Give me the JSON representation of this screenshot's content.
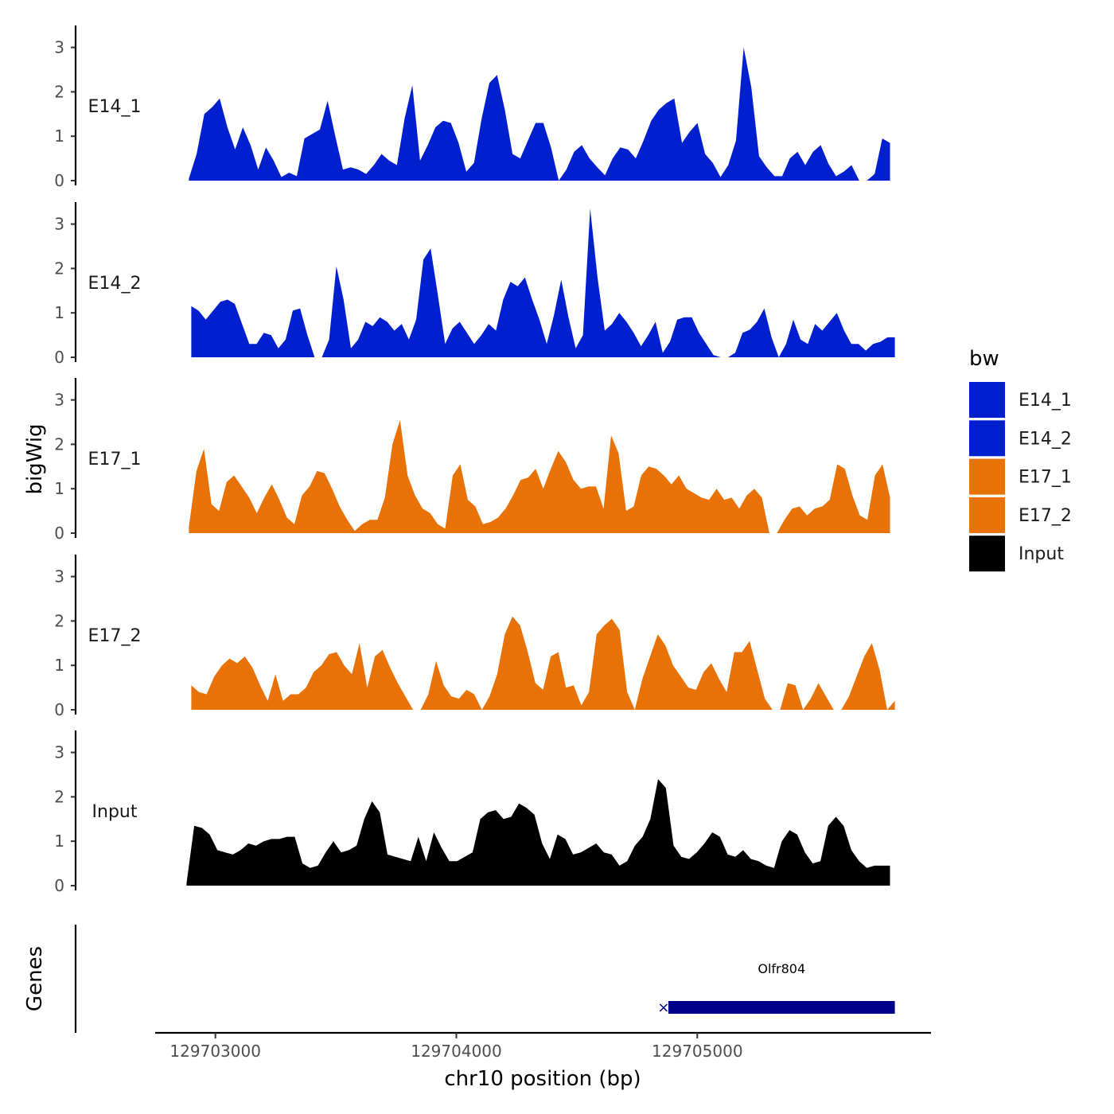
{
  "chart_data": {
    "type": "area",
    "ylabel": "bigWig",
    "xlabel": "chr10 position (bp)",
    "ylim": [
      0,
      3.5
    ],
    "yticks": [
      0,
      1,
      2,
      3
    ],
    "xlim": [
      129702750,
      129705970
    ],
    "xticks": [
      129703000,
      129704000,
      129705000
    ],
    "xtick_labels": [
      "129703000",
      "129704000",
      "129705000"
    ],
    "bin_size_bp": 50,
    "tracks": [
      {
        "name": "E14_1",
        "label": "E14_1",
        "color": "#0020d0",
        "x_start": 129702890,
        "x_end": 129705800,
        "values": [
          0.05,
          0.6,
          1.5,
          1.65,
          1.85,
          1.2,
          0.7,
          1.2,
          0.8,
          0.25,
          0.75,
          0.45,
          0.08,
          0.18,
          0.1,
          0.95,
          1.05,
          1.15,
          1.8,
          1.0,
          0.25,
          0.3,
          0.25,
          0.15,
          0.35,
          0.6,
          0.45,
          0.35,
          1.4,
          2.15,
          0.45,
          0.8,
          1.2,
          1.35,
          1.3,
          0.85,
          0.2,
          0.4,
          1.4,
          2.2,
          2.38,
          1.6,
          0.6,
          0.5,
          0.9,
          1.3,
          1.3,
          0.75,
          0.0,
          0.25,
          0.65,
          0.8,
          0.5,
          0.3,
          0.12,
          0.5,
          0.75,
          0.7,
          0.5,
          0.9,
          1.35,
          1.6,
          1.75,
          1.85,
          0.85,
          1.1,
          1.3,
          0.6,
          0.4,
          0.08,
          0.35,
          0.9,
          3.0,
          2.1,
          0.55,
          0.3,
          0.1,
          0.1,
          0.5,
          0.65,
          0.35,
          0.65,
          0.8,
          0.38,
          0.1,
          0.2,
          0.35,
          0.0,
          0.0,
          0.15,
          0.95,
          0.85
        ]
      },
      {
        "name": "E14_2",
        "label": "E14_2",
        "color": "#0020d0",
        "x_start": 129702900,
        "x_end": 129705820,
        "values": [
          1.15,
          1.05,
          0.85,
          1.05,
          1.25,
          1.3,
          1.2,
          0.75,
          0.3,
          0.3,
          0.55,
          0.5,
          0.2,
          0.4,
          1.05,
          1.1,
          0.5,
          0.0,
          0.0,
          0.4,
          2.05,
          1.3,
          0.2,
          0.4,
          0.8,
          0.7,
          0.9,
          0.8,
          0.6,
          0.75,
          0.4,
          0.85,
          2.2,
          2.45,
          1.4,
          0.3,
          0.65,
          0.8,
          0.55,
          0.3,
          0.5,
          0.75,
          0.6,
          1.3,
          1.7,
          1.6,
          1.8,
          1.3,
          0.85,
          0.3,
          0.95,
          1.75,
          0.9,
          0.2,
          0.5,
          3.35,
          1.8,
          0.6,
          0.75,
          1.0,
          0.8,
          0.55,
          0.25,
          0.5,
          0.8,
          0.1,
          0.35,
          0.85,
          0.9,
          0.9,
          0.55,
          0.3,
          0.05,
          0.0,
          0.0,
          0.1,
          0.55,
          0.62,
          0.8,
          1.1,
          0.45,
          0.0,
          0.3,
          0.85,
          0.4,
          0.3,
          0.75,
          0.6,
          0.8,
          1.0,
          0.6,
          0.3,
          0.3,
          0.15,
          0.3,
          0.35,
          0.45,
          0.45
        ]
      },
      {
        "name": "E17_1",
        "label": "E17_1",
        "color": "#e87205",
        "x_start": 129702890,
        "x_end": 129705800,
        "values": [
          0.15,
          1.4,
          1.9,
          0.65,
          0.5,
          1.15,
          1.3,
          1.05,
          0.8,
          0.45,
          0.8,
          1.1,
          0.75,
          0.35,
          0.2,
          0.85,
          1.05,
          1.4,
          1.35,
          1.0,
          0.6,
          0.3,
          0.05,
          0.2,
          0.3,
          0.3,
          0.8,
          2.0,
          2.55,
          1.3,
          0.85,
          0.55,
          0.45,
          0.2,
          0.1,
          1.3,
          1.55,
          0.75,
          0.6,
          0.2,
          0.25,
          0.35,
          0.55,
          0.85,
          1.2,
          1.25,
          1.45,
          1.0,
          1.45,
          1.85,
          1.6,
          1.2,
          1.0,
          1.05,
          1.05,
          0.55,
          2.2,
          1.8,
          0.5,
          0.6,
          1.3,
          1.5,
          1.45,
          1.3,
          1.1,
          1.3,
          1.0,
          0.9,
          0.8,
          0.75,
          1.0,
          0.75,
          0.8,
          0.55,
          0.85,
          1.0,
          0.8,
          0.0,
          0.0,
          0.3,
          0.55,
          0.6,
          0.4,
          0.55,
          0.6,
          0.75,
          1.55,
          1.45,
          0.85,
          0.4,
          0.3,
          1.3,
          1.55,
          0.8
        ]
      },
      {
        "name": "E17_2",
        "label": "E17_2",
        "color": "#e87205",
        "x_start": 129702900,
        "x_end": 129705820,
        "values": [
          0.55,
          0.4,
          0.35,
          0.75,
          1.0,
          1.15,
          1.05,
          1.2,
          0.95,
          0.55,
          0.2,
          0.8,
          0.2,
          0.35,
          0.35,
          0.5,
          0.85,
          1.0,
          1.25,
          1.3,
          1.0,
          0.8,
          1.5,
          0.5,
          1.2,
          1.35,
          0.95,
          0.6,
          0.3,
          0.0,
          0.0,
          0.35,
          1.1,
          0.55,
          0.3,
          0.25,
          0.45,
          0.35,
          0.0,
          0.3,
          0.8,
          1.7,
          2.1,
          1.9,
          1.3,
          0.6,
          0.45,
          1.2,
          1.3,
          0.5,
          0.55,
          0.1,
          0.4,
          1.7,
          1.9,
          2.05,
          1.8,
          0.4,
          0.0,
          0.7,
          1.2,
          1.7,
          1.45,
          1.0,
          0.75,
          0.5,
          0.45,
          0.85,
          1.05,
          0.7,
          0.4,
          1.3,
          1.3,
          1.55,
          0.9,
          0.25,
          0.0,
          0.0,
          0.6,
          0.55,
          0.0,
          0.25,
          0.6,
          0.3,
          0.0,
          0.0,
          0.3,
          0.75,
          1.2,
          1.5,
          0.9,
          0.0,
          0.2
        ]
      },
      {
        "name": "Input",
        "label": "Input",
        "color": "#000000",
        "x_start": 129702880,
        "x_end": 129705800,
        "values": [
          0.05,
          1.35,
          1.3,
          1.15,
          0.8,
          0.75,
          0.7,
          0.8,
          0.95,
          0.9,
          1.0,
          1.05,
          1.05,
          1.1,
          1.1,
          0.5,
          0.4,
          0.45,
          0.75,
          1.0,
          0.75,
          0.8,
          0.9,
          1.5,
          1.9,
          1.65,
          0.7,
          0.65,
          0.6,
          0.55,
          1.1,
          0.55,
          1.2,
          0.85,
          0.55,
          0.55,
          0.65,
          0.75,
          1.5,
          1.65,
          1.7,
          1.5,
          1.55,
          1.85,
          1.75,
          1.6,
          0.95,
          0.6,
          1.15,
          1.05,
          0.7,
          0.75,
          0.85,
          0.95,
          0.75,
          0.7,
          0.45,
          0.55,
          0.9,
          1.1,
          1.5,
          2.4,
          2.2,
          0.9,
          0.65,
          0.6,
          0.75,
          0.95,
          1.2,
          1.1,
          0.7,
          0.65,
          0.8,
          0.6,
          0.55,
          0.45,
          0.4,
          1.0,
          1.25,
          1.15,
          0.75,
          0.5,
          0.55,
          1.35,
          1.55,
          1.35,
          0.8,
          0.55,
          0.4,
          0.45,
          0.45,
          0.45
        ]
      }
    ],
    "genes": {
      "title": "Genes",
      "items": [
        {
          "name": "Olfr804",
          "start": 129704880,
          "end": 129705820,
          "strand": "-",
          "color": "#00008b"
        }
      ]
    },
    "legend": {
      "title": "bw",
      "entries": [
        {
          "label": "E14_1",
          "color": "#0020d0"
        },
        {
          "label": "E14_2",
          "color": "#0020d0"
        },
        {
          "label": "E17_1",
          "color": "#e87205"
        },
        {
          "label": "E17_2",
          "color": "#e87205"
        },
        {
          "label": "Input",
          "color": "#000000"
        }
      ]
    }
  }
}
